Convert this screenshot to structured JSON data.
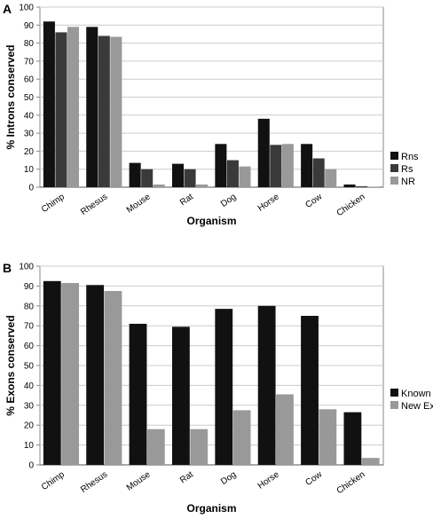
{
  "chart_data": [
    {
      "type": "bar",
      "panel_label": "A",
      "x_label": "Organism",
      "y_label": "% Introns conserved",
      "categories": [
        "Chimp",
        "Rhesus",
        "Mouse",
        "Rat",
        "Dog",
        "Horse",
        "Cow",
        "Chicken"
      ],
      "series": [
        {
          "name": "Rns",
          "color": "#111111",
          "values": [
            92,
            89,
            13.5,
            13,
            24,
            38,
            24,
            1.5
          ]
        },
        {
          "name": "Rs",
          "color": "#3a3a3a",
          "values": [
            86,
            84,
            10,
            10,
            15,
            23.5,
            16,
            0.5
          ]
        },
        {
          "name": "NR",
          "color": "#999999",
          "values": [
            89,
            83.5,
            1.5,
            1.5,
            11.5,
            24,
            10,
            0.3
          ]
        }
      ],
      "ylim": [
        0,
        100
      ],
      "yticks": [
        0,
        10,
        20,
        30,
        40,
        50,
        60,
        70,
        80,
        90,
        100
      ],
      "grid": true,
      "legend": "right"
    },
    {
      "type": "bar",
      "panel_label": "B",
      "x_label": "Organism",
      "y_label": "% Exons conserved",
      "categories": [
        "Chimp",
        "Rhesus",
        "Mouse",
        "Rat",
        "Dog",
        "Horse",
        "Cow",
        "Chicken"
      ],
      "series": [
        {
          "name": "Known Exons",
          "color": "#111111",
          "values": [
            92.5,
            90.5,
            71,
            69.5,
            78.5,
            80,
            75,
            26.5
          ]
        },
        {
          "name": "New Exons",
          "color": "#999999",
          "values": [
            91.5,
            87.5,
            18,
            18,
            27.5,
            35.5,
            28,
            3.5
          ]
        }
      ],
      "ylim": [
        0,
        100
      ],
      "yticks": [
        0,
        10,
        20,
        30,
        40,
        50,
        60,
        70,
        80,
        90,
        100
      ],
      "grid": true,
      "legend": "right"
    }
  ]
}
